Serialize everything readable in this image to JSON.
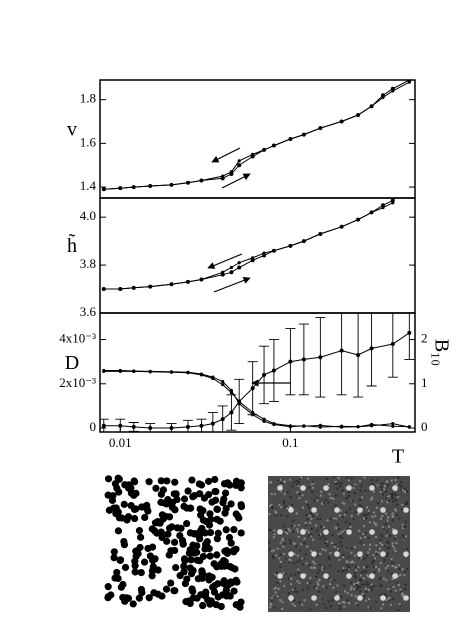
{
  "chart_data": [
    {
      "type": "line",
      "y_label": "v",
      "xscale": "log",
      "xlim": [
        0.0076,
        0.54
      ],
      "ylim": [
        1.35,
        1.89
      ],
      "yticks": [
        {
          "value": 1.4,
          "label": "1.4"
        },
        {
          "value": 1.6,
          "label": "1.6"
        },
        {
          "value": 1.8,
          "label": "1.8"
        }
      ],
      "x": [
        0.008,
        0.01,
        0.012,
        0.015,
        0.02,
        0.025,
        0.03,
        0.04,
        0.045,
        0.05,
        0.06,
        0.07,
        0.08,
        0.1,
        0.12,
        0.15,
        0.2,
        0.25,
        0.3,
        0.35,
        0.4,
        0.5
      ],
      "series": [
        {
          "color": "#000000",
          "values": [
            1.39,
            1.395,
            1.4,
            1.405,
            1.41,
            1.42,
            1.43,
            1.44,
            1.46,
            1.5,
            1.54,
            1.57,
            1.59,
            1.62,
            1.64,
            1.67,
            1.7,
            1.73,
            1.77,
            1.82,
            1.85,
            1.89
          ]
        },
        {
          "color": "#000000",
          "values": [
            1.39,
            1.395,
            1.4,
            1.405,
            1.41,
            1.42,
            1.43,
            1.45,
            1.47,
            1.52,
            1.55,
            1.57,
            1.59,
            1.62,
            1.64,
            1.67,
            1.7,
            1.73,
            1.77,
            1.81,
            1.84,
            1.88
          ]
        }
      ]
    },
    {
      "type": "line",
      "y_label": "h̃",
      "xscale": "log",
      "xlim": [
        0.0076,
        0.54
      ],
      "ylim": [
        3.6,
        4.08
      ],
      "yticks": [
        {
          "value": 3.6,
          "label": "3.6"
        },
        {
          "value": 3.8,
          "label": "3.8"
        },
        {
          "value": 4.0,
          "label": "4.0"
        }
      ],
      "x": [
        0.008,
        0.01,
        0.012,
        0.015,
        0.02,
        0.025,
        0.03,
        0.04,
        0.045,
        0.05,
        0.06,
        0.07,
        0.08,
        0.1,
        0.12,
        0.15,
        0.2,
        0.25,
        0.3,
        0.35,
        0.4,
        0.5
      ],
      "series": [
        {
          "color": "#000000",
          "values": [
            3.7,
            3.7,
            3.705,
            3.71,
            3.72,
            3.73,
            3.74,
            3.76,
            3.77,
            3.79,
            3.82,
            3.84,
            3.86,
            3.88,
            3.9,
            3.93,
            3.96,
            3.99,
            4.02,
            4.05,
            4.07,
            null
          ]
        },
        {
          "color": "#000000",
          "values": [
            3.7,
            3.7,
            3.705,
            3.71,
            3.72,
            3.73,
            3.74,
            3.77,
            3.79,
            3.81,
            3.83,
            3.85,
            3.86,
            3.88,
            3.9,
            3.93,
            3.96,
            3.99,
            4.02,
            4.04,
            4.06,
            null
          ]
        }
      ]
    },
    {
      "type": "line",
      "y_label": "D",
      "y2_label": "B₁₀",
      "x_label": "T",
      "xscale": "log",
      "xlim": [
        0.0076,
        0.54
      ],
      "xticks": [
        {
          "value": 0.01,
          "label": "0.01"
        },
        {
          "value": 0.1,
          "label": "0.1"
        }
      ],
      "ylim": [
        -0.00018,
        0.0052
      ],
      "yticks": [
        {
          "value": 0,
          "label": "0"
        },
        {
          "value": 0.002,
          "label": "2x10⁻³"
        },
        {
          "value": 0.004,
          "label": "4x10⁻³"
        }
      ],
      "y2lim": [
        -0.09,
        2.6
      ],
      "y2ticks": [
        0,
        1,
        2
      ],
      "x": [
        0.008,
        0.01,
        0.012,
        0.015,
        0.02,
        0.025,
        0.03,
        0.035,
        0.04,
        0.045,
        0.05,
        0.06,
        0.07,
        0.08,
        0.1,
        0.12,
        0.15,
        0.2,
        0.25,
        0.3,
        0.4,
        0.5
      ],
      "series": [
        {
          "color": "#000000",
          "values": [
            0.0001,
            0.0001,
            5e-05,
            0,
            0,
            5e-05,
            0.0001,
            0.0002,
            0.0004,
            0.0007,
            0.0012,
            0.0018,
            0.0024,
            0.0026,
            0.003,
            0.0031,
            0.0032,
            0.0035,
            0.0033,
            0.0036,
            0.0038,
            0.0043
          ],
          "errors": [
            0.0003,
            0.0003,
            0.0002,
            0.0002,
            0.0002,
            0.0003,
            0.0003,
            0.0005,
            0.0006,
            0.0008,
            0.001,
            0.0012,
            0.0013,
            0.0014,
            0.0015,
            0.0016,
            0.0018,
            0.002,
            0.0019,
            0.0017,
            0.0015,
            0.0012
          ]
        },
        {
          "color": "#000000",
          "axis": "y2",
          "values": [
            1.3,
            1.3,
            1.29,
            1.28,
            1.27,
            1.26,
            1.22,
            1.15,
            1.05,
            0.85,
            0.55,
            0.3,
            0.15,
            0.08,
            0.03,
            0.05,
            0.02,
            0.04,
            0.03,
            0.05,
            0.1,
            0.02
          ]
        },
        {
          "color": "#000000",
          "axis": "y2",
          "values": [
            1.28,
            1.28,
            1.28,
            1.27,
            1.26,
            1.25,
            1.2,
            1.12,
            0.98,
            0.8,
            0.6,
            0.35,
            0.2,
            0.1,
            0.05,
            0.04,
            0.06,
            0.02,
            0.03,
            0.08,
            0.04,
            0.03
          ]
        }
      ]
    }
  ]
}
